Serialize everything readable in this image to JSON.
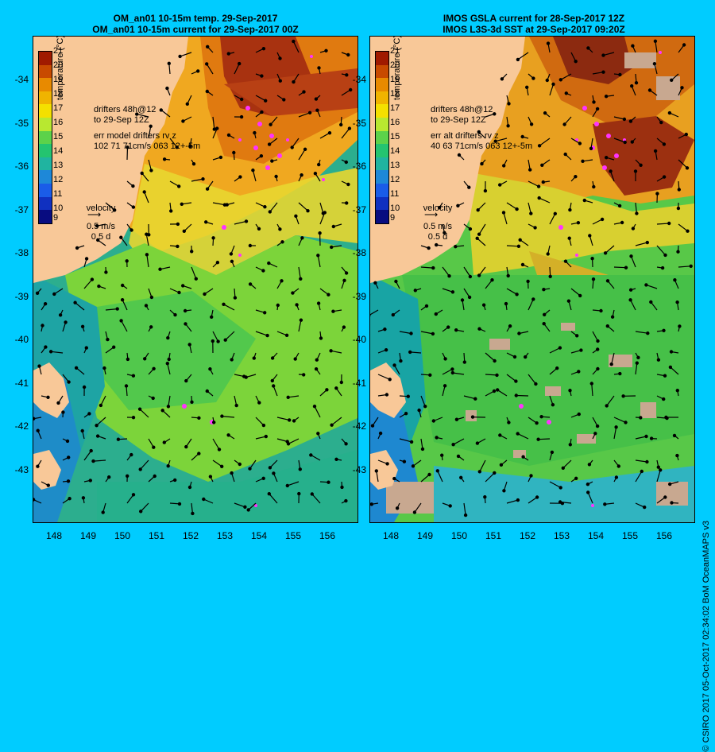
{
  "left_panel": {
    "title_line1": "OM_an01 10-15m temp. 29-Sep-2017",
    "title_line2": "OM_an01 10-15m current for 29-Sep-2017 00Z",
    "legend_drifters": "drifters 48h@12",
    "legend_to": "to 29-Sep 12Z",
    "legend_err": "err model drifters rv z",
    "legend_err_vals": "102 71 71cm/s 063 12+-5m",
    "velocity_label": "velocity",
    "velocity_scale": "0.5 m/s",
    "velocity_time": "0.5 d"
  },
  "right_panel": {
    "title_line1": "IMOS GSLA current for 28-Sep-2017 12Z",
    "title_line2": "IMOS L3S-3d SST at 29-Sep-2017 09:20Z",
    "legend_drifters": "drifters 48h@12",
    "legend_to": "to 29-Sep 12Z",
    "legend_err": "err alt drifters rv z",
    "legend_err_vals": "40 63 71cm/s 063 12+-5m",
    "velocity_label": "velocity",
    "velocity_scale": "0.5 m/s",
    "velocity_time": "0.5 d"
  },
  "colorbar": {
    "title": "temperature (°C)",
    "ticks": [
      "21",
      "20",
      "19",
      "18",
      "17",
      "16",
      "15",
      "14",
      "13",
      "12",
      "11",
      "10",
      "9"
    ],
    "colors": [
      "#a01a00",
      "#c84a00",
      "#e88a00",
      "#f0b400",
      "#f4e000",
      "#b8e830",
      "#5cd24a",
      "#24c470",
      "#20b4a0",
      "#1e88d8",
      "#1a5ce8",
      "#1030c0",
      "#080c80"
    ]
  },
  "axes": {
    "lat_ticks": [
      "-34",
      "-35",
      "-36",
      "-37",
      "-38",
      "-39",
      "-40",
      "-41",
      "-42",
      "-43"
    ],
    "lon_ticks": [
      "148",
      "149",
      "150",
      "151",
      "152",
      "153",
      "154",
      "155",
      "156"
    ]
  },
  "credit": "© CSIRO 2017   05-Oct-2017 02:34:02 BoM OceanMAPS v3",
  "colors": {
    "background": "#00ccff",
    "land": "#f8c898",
    "drifter": "#ff33ff",
    "cloud": "#c8a890"
  }
}
